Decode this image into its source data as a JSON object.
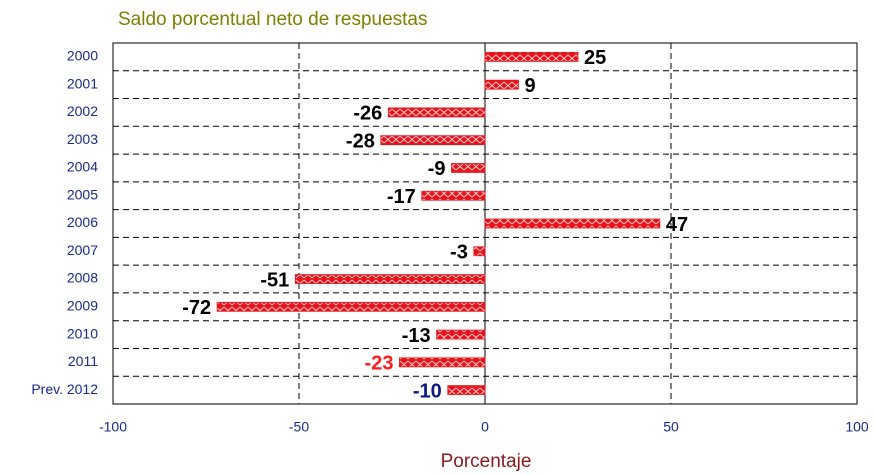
{
  "chart_data": {
    "type": "barh",
    "title": "Saldo porcentual neto de respuestas",
    "x_label": "Porcentaje",
    "categories": [
      "2000",
      "2001",
      "2002",
      "2003",
      "2004",
      "2005",
      "2006",
      "2007",
      "2008",
      "2009",
      "2010",
      "2011",
      "Prev. 2012"
    ],
    "values": [
      25,
      9,
      -26,
      -28,
      -9,
      -17,
      47,
      -3,
      -51,
      -72,
      -13,
      -23,
      -10
    ],
    "label_colors": [
      "#000000",
      "#000000",
      "#000000",
      "#000000",
      "#000000",
      "#000000",
      "#000000",
      "#000000",
      "#000000",
      "#000000",
      "#000000",
      "#ff1a1a",
      "#0a1a80"
    ],
    "color": "#e8121a",
    "xlim": [
      -100,
      100
    ],
    "xticks": [
      -100,
      -50,
      0,
      50,
      100
    ],
    "grid": true
  }
}
